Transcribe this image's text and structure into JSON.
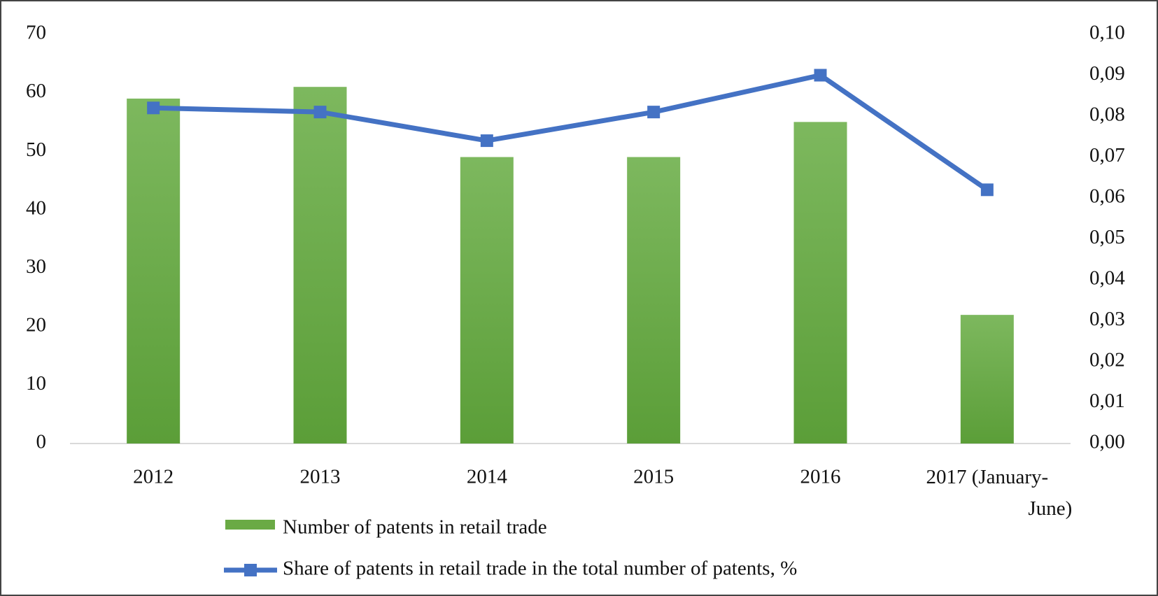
{
  "chart_data": {
    "type": "bar",
    "categories": [
      "2012",
      "2013",
      "2014",
      "2015",
      "2016",
      "2017 (January-June)"
    ],
    "series": [
      {
        "name": "Number of patents in retail trade",
        "color": "#6aaa45",
        "values": [
          59,
          61,
          49,
          49,
          55,
          22
        ]
      },
      {
        "name": "Share of patents in retail trade in the total number of patents, %",
        "color": "#4472c4",
        "axis": "y2",
        "type": "line",
        "values": [
          0.082,
          0.081,
          0.074,
          0.081,
          0.09,
          0.062
        ]
      }
    ],
    "ylim": [
      0,
      70
    ],
    "yticks": [
      0,
      10,
      20,
      30,
      40,
      50,
      60,
      70
    ],
    "y2lim": [
      0,
      0.1
    ],
    "y2ticks": [
      {
        "value": 0,
        "label": "0,00"
      },
      {
        "value": 0.01,
        "label": "0,01"
      },
      {
        "value": 0.02,
        "label": "0,02"
      },
      {
        "value": 0.03,
        "label": "0,03"
      },
      {
        "value": 0.04,
        "label": "0,04"
      },
      {
        "value": 0.05,
        "label": "0,05"
      },
      {
        "value": 0.06,
        "label": "0,06"
      },
      {
        "value": 0.07,
        "label": "0,07"
      },
      {
        "value": 0.08,
        "label": "0,08"
      },
      {
        "value": 0.09,
        "label": "0,09"
      },
      {
        "value": 0.1,
        "label": "0,10"
      }
    ],
    "grid": false
  }
}
